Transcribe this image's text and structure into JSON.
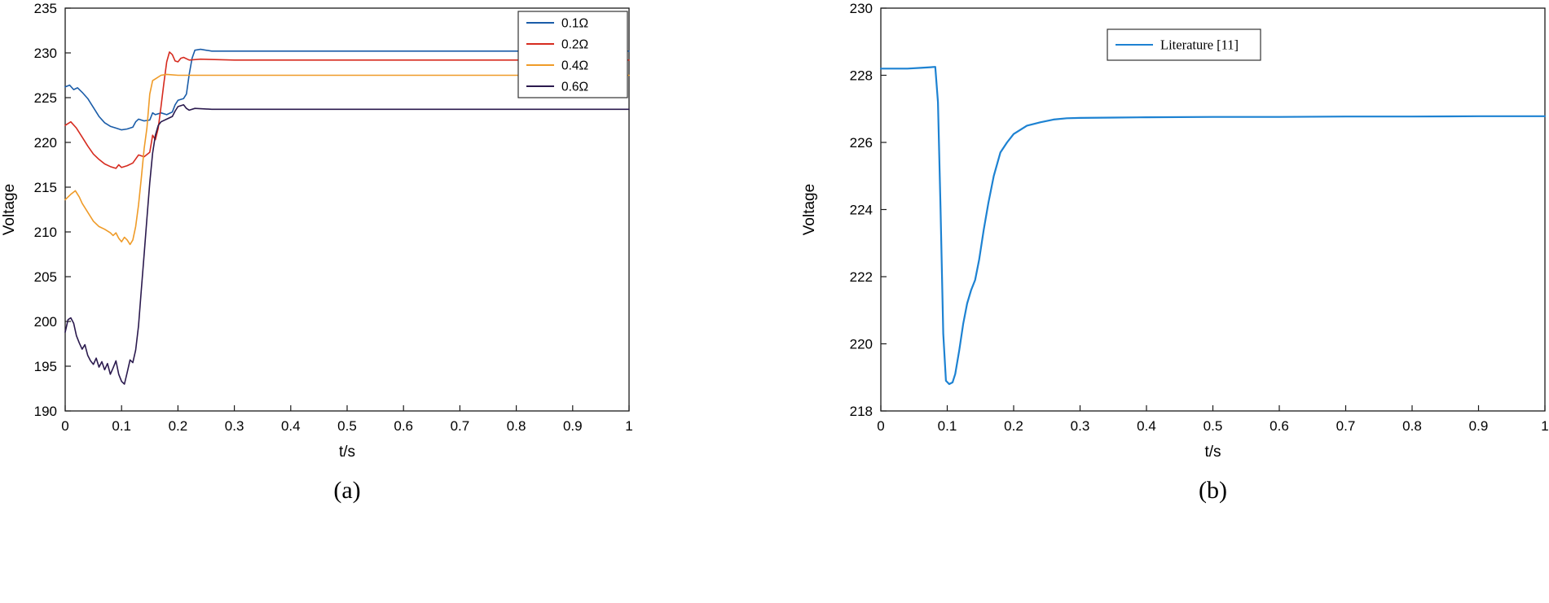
{
  "figure": {
    "background": "#ffffff",
    "axis_color": "#1a1a1a"
  },
  "chart_data": [
    {
      "type": "line",
      "caption": "(a)",
      "title": "",
      "xlabel": "t/s",
      "ylabel": "Voltage",
      "xlim": [
        0,
        1
      ],
      "ylim": [
        190,
        235
      ],
      "xticks": [
        0,
        0.1,
        0.2,
        0.3,
        0.4,
        0.5,
        0.6,
        0.7,
        0.8,
        0.9,
        1
      ],
      "xtick_labels": [
        "0",
        "0.1",
        "0.2",
        "0.3",
        "0.4",
        "0.5",
        "0.6",
        "0.7",
        "0.8",
        "0.9",
        "1"
      ],
      "yticks": [
        190,
        195,
        200,
        205,
        210,
        215,
        220,
        225,
        230,
        235
      ],
      "ytick_labels": [
        "190",
        "195",
        "200",
        "205",
        "210",
        "215",
        "220",
        "225",
        "230",
        "235"
      ],
      "grid": false,
      "legend_position": "top-right",
      "axis_color": "#1a1a1a",
      "line_width": 1.6,
      "series": [
        {
          "name": "0.1Ω",
          "color": "#1a5ca8",
          "points": [
            [
              0,
              226.2
            ],
            [
              0.008,
              226.4
            ],
            [
              0.015,
              225.9
            ],
            [
              0.022,
              226.1
            ],
            [
              0.03,
              225.6
            ],
            [
              0.04,
              224.9
            ],
            [
              0.05,
              223.9
            ],
            [
              0.06,
              222.9
            ],
            [
              0.07,
              222.2
            ],
            [
              0.08,
              221.8
            ],
            [
              0.09,
              221.6
            ],
            [
              0.1,
              221.4
            ],
            [
              0.11,
              221.5
            ],
            [
              0.12,
              221.7
            ],
            [
              0.125,
              222.3
            ],
            [
              0.13,
              222.6
            ],
            [
              0.14,
              222.4
            ],
            [
              0.15,
              222.5
            ],
            [
              0.155,
              223.3
            ],
            [
              0.16,
              223.1
            ],
            [
              0.17,
              223.3
            ],
            [
              0.18,
              223.1
            ],
            [
              0.19,
              223.4
            ],
            [
              0.195,
              224.2
            ],
            [
              0.2,
              224.7
            ],
            [
              0.21,
              224.9
            ],
            [
              0.215,
              225.4
            ],
            [
              0.22,
              227.6
            ],
            [
              0.225,
              229.4
            ],
            [
              0.23,
              230.3
            ],
            [
              0.24,
              230.4
            ],
            [
              0.26,
              230.2
            ],
            [
              0.3,
              230.2
            ],
            [
              0.5,
              230.2
            ],
            [
              0.7,
              230.2
            ],
            [
              1,
              230.2
            ]
          ]
        },
        {
          "name": "0.2Ω",
          "color": "#d62b1f",
          "points": [
            [
              0,
              221.9
            ],
            [
              0.01,
              222.3
            ],
            [
              0.02,
              221.6
            ],
            [
              0.03,
              220.6
            ],
            [
              0.04,
              219.6
            ],
            [
              0.05,
              218.7
            ],
            [
              0.06,
              218.1
            ],
            [
              0.07,
              217.6
            ],
            [
              0.08,
              217.3
            ],
            [
              0.09,
              217.1
            ],
            [
              0.095,
              217.5
            ],
            [
              0.1,
              217.2
            ],
            [
              0.11,
              217.4
            ],
            [
              0.12,
              217.7
            ],
            [
              0.13,
              218.6
            ],
            [
              0.14,
              218.4
            ],
            [
              0.15,
              218.9
            ],
            [
              0.155,
              220.8
            ],
            [
              0.16,
              220.3
            ],
            [
              0.165,
              221.6
            ],
            [
              0.17,
              224
            ],
            [
              0.175,
              226.6
            ],
            [
              0.18,
              229
            ],
            [
              0.185,
              230.1
            ],
            [
              0.19,
              229.8
            ],
            [
              0.195,
              229.1
            ],
            [
              0.2,
              229
            ],
            [
              0.205,
              229.4
            ],
            [
              0.21,
              229.5
            ],
            [
              0.22,
              229.2
            ],
            [
              0.24,
              229.3
            ],
            [
              0.3,
              229.2
            ],
            [
              0.5,
              229.2
            ],
            [
              0.7,
              229.2
            ],
            [
              1,
              229.2
            ]
          ]
        },
        {
          "name": "0.4Ω",
          "color": "#ef9b28",
          "points": [
            [
              0,
              213.6
            ],
            [
              0.01,
              214.2
            ],
            [
              0.018,
              214.6
            ],
            [
              0.025,
              213.9
            ],
            [
              0.03,
              213.2
            ],
            [
              0.04,
              212.2
            ],
            [
              0.05,
              211.2
            ],
            [
              0.06,
              210.6
            ],
            [
              0.07,
              210.3
            ],
            [
              0.08,
              209.9
            ],
            [
              0.085,
              209.6
            ],
            [
              0.09,
              209.9
            ],
            [
              0.095,
              209.3
            ],
            [
              0.1,
              208.9
            ],
            [
              0.105,
              209.4
            ],
            [
              0.11,
              209.1
            ],
            [
              0.115,
              208.6
            ],
            [
              0.12,
              209.1
            ],
            [
              0.125,
              210.6
            ],
            [
              0.13,
              213
            ],
            [
              0.135,
              216
            ],
            [
              0.14,
              219.3
            ],
            [
              0.145,
              221.6
            ],
            [
              0.15,
              225.4
            ],
            [
              0.155,
              226.9
            ],
            [
              0.16,
              227.1
            ],
            [
              0.17,
              227.5
            ],
            [
              0.18,
              227.6
            ],
            [
              0.2,
              227.5
            ],
            [
              0.3,
              227.5
            ],
            [
              0.5,
              227.5
            ],
            [
              0.7,
              227.5
            ],
            [
              1,
              227.5
            ]
          ]
        },
        {
          "name": "0.6Ω",
          "color": "#2b1a4e",
          "points": [
            [
              0,
              198.8
            ],
            [
              0.005,
              200.2
            ],
            [
              0.01,
              200.4
            ],
            [
              0.015,
              199.8
            ],
            [
              0.02,
              198.4
            ],
            [
              0.025,
              197.6
            ],
            [
              0.03,
              196.9
            ],
            [
              0.035,
              197.4
            ],
            [
              0.04,
              196.2
            ],
            [
              0.045,
              195.6
            ],
            [
              0.05,
              195.2
            ],
            [
              0.055,
              195.9
            ],
            [
              0.06,
              194.9
            ],
            [
              0.065,
              195.5
            ],
            [
              0.07,
              194.6
            ],
            [
              0.075,
              195.3
            ],
            [
              0.08,
              194.1
            ],
            [
              0.085,
              194.8
            ],
            [
              0.09,
              195.6
            ],
            [
              0.095,
              194.1
            ],
            [
              0.1,
              193.3
            ],
            [
              0.105,
              193
            ],
            [
              0.11,
              194.3
            ],
            [
              0.115,
              195.7
            ],
            [
              0.12,
              195.4
            ],
            [
              0.125,
              196.8
            ],
            [
              0.13,
              199.5
            ],
            [
              0.135,
              203.5
            ],
            [
              0.14,
              207.5
            ],
            [
              0.145,
              211.5
            ],
            [
              0.15,
              215.5
            ],
            [
              0.155,
              218.8
            ],
            [
              0.16,
              220.8
            ],
            [
              0.165,
              221.9
            ],
            [
              0.17,
              222.3
            ],
            [
              0.18,
              222.6
            ],
            [
              0.19,
              222.9
            ],
            [
              0.195,
              223.5
            ],
            [
              0.2,
              224
            ],
            [
              0.21,
              224.2
            ],
            [
              0.215,
              223.8
            ],
            [
              0.22,
              223.6
            ],
            [
              0.23,
              223.8
            ],
            [
              0.26,
              223.7
            ],
            [
              0.3,
              223.7
            ],
            [
              0.5,
              223.7
            ],
            [
              0.7,
              223.7
            ],
            [
              1,
              223.7
            ]
          ]
        }
      ]
    },
    {
      "type": "line",
      "caption": "(b)",
      "title": "",
      "xlabel": "t/s",
      "ylabel": "Voltage",
      "xlim": [
        0,
        1
      ],
      "ylim": [
        218,
        230
      ],
      "xticks": [
        0,
        0.1,
        0.2,
        0.3,
        0.4,
        0.5,
        0.6,
        0.7,
        0.8,
        0.9,
        1
      ],
      "xtick_labels": [
        "0",
        "0.1",
        "0.2",
        "0.3",
        "0.4",
        "0.5",
        "0.6",
        "0.7",
        "0.8",
        "0.9",
        "1"
      ],
      "yticks": [
        218,
        220,
        222,
        224,
        226,
        228,
        230
      ],
      "ytick_labels": [
        "218",
        "220",
        "222",
        "224",
        "226",
        "228",
        "230"
      ],
      "grid": false,
      "legend_position": "top-center-right",
      "axis_color": "#1a1a1a",
      "line_width": 2.2,
      "series": [
        {
          "name": "Literature [11]",
          "color": "#1d82d2",
          "points": [
            [
              0,
              228.2
            ],
            [
              0.02,
              228.2
            ],
            [
              0.04,
              228.2
            ],
            [
              0.06,
              228.22
            ],
            [
              0.075,
              228.24
            ],
            [
              0.082,
              228.25
            ],
            [
              0.086,
              227.2
            ],
            [
              0.09,
              224
            ],
            [
              0.094,
              220.3
            ],
            [
              0.098,
              218.9
            ],
            [
              0.103,
              218.8
            ],
            [
              0.108,
              218.85
            ],
            [
              0.112,
              219.1
            ],
            [
              0.118,
              219.8
            ],
            [
              0.124,
              220.6
            ],
            [
              0.13,
              221.2
            ],
            [
              0.136,
              221.6
            ],
            [
              0.142,
              221.9
            ],
            [
              0.148,
              222.5
            ],
            [
              0.155,
              223.4
            ],
            [
              0.162,
              224.2
            ],
            [
              0.17,
              225
            ],
            [
              0.18,
              225.7
            ],
            [
              0.19,
              226
            ],
            [
              0.2,
              226.25
            ],
            [
              0.22,
              226.5
            ],
            [
              0.24,
              226.6
            ],
            [
              0.26,
              226.68
            ],
            [
              0.28,
              226.72
            ],
            [
              0.3,
              226.73
            ],
            [
              0.35,
              226.74
            ],
            [
              0.4,
              226.75
            ],
            [
              0.5,
              226.76
            ],
            [
              0.6,
              226.76
            ],
            [
              0.7,
              226.77
            ],
            [
              0.8,
              226.77
            ],
            [
              0.9,
              226.78
            ],
            [
              1,
              226.78
            ]
          ]
        }
      ]
    }
  ]
}
